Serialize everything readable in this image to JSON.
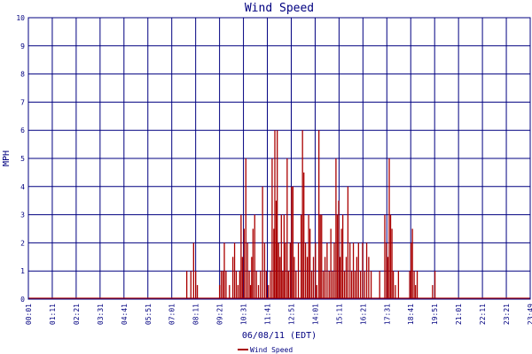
{
  "chart_data": {
    "type": "line",
    "title": "Wind Speed",
    "xlabel": "06/08/11 (EDT)",
    "ylabel": "MPH",
    "ylim": [
      0,
      10
    ],
    "y_ticks": [
      "0",
      "1",
      "2",
      "3",
      "4",
      "5",
      "6",
      "7",
      "8",
      "9",
      "10"
    ],
    "x_ticks": [
      "00:01",
      "01:11",
      "02:21",
      "03:31",
      "04:41",
      "05:51",
      "07:01",
      "08:11",
      "09:21",
      "10:31",
      "11:41",
      "12:51",
      "14:01",
      "15:11",
      "16:21",
      "17:31",
      "18:41",
      "19:51",
      "21:01",
      "22:11",
      "23:21",
      "23:49"
    ],
    "grid": true,
    "legend_position": "bottom-center",
    "colors": {
      "series": "#aa0000",
      "grid": "#000080",
      "text": "#000080"
    },
    "series": [
      {
        "name": "Wind Speed",
        "points": [
          [
            "07:45",
            1
          ],
          [
            "07:57",
            1
          ],
          [
            "08:05",
            2
          ],
          [
            "08:11",
            1
          ],
          [
            "08:16",
            0.5
          ],
          [
            "09:21",
            0.5
          ],
          [
            "09:26",
            1
          ],
          [
            "09:31",
            1
          ],
          [
            "09:35",
            2
          ],
          [
            "09:40",
            1
          ],
          [
            "09:50",
            0.5
          ],
          [
            "10:00",
            1.5
          ],
          [
            "10:05",
            2
          ],
          [
            "10:10",
            1
          ],
          [
            "10:15",
            0.5
          ],
          [
            "10:20",
            1
          ],
          [
            "10:24",
            3
          ],
          [
            "10:28",
            1.5
          ],
          [
            "10:33",
            2.5
          ],
          [
            "10:38",
            5
          ],
          [
            "10:43",
            2
          ],
          [
            "10:48",
            1
          ],
          [
            "10:52",
            0.5
          ],
          [
            "10:55",
            1.5
          ],
          [
            "10:59",
            2.5
          ],
          [
            "11:04",
            3
          ],
          [
            "11:09",
            1
          ],
          [
            "11:15",
            0.5
          ],
          [
            "11:21",
            1
          ],
          [
            "11:27",
            4
          ],
          [
            "11:33",
            2
          ],
          [
            "11:38",
            1
          ],
          [
            "11:44",
            0.5
          ],
          [
            "11:50",
            1
          ],
          [
            "11:55",
            5
          ],
          [
            "12:00",
            2.5
          ],
          [
            "12:03",
            6
          ],
          [
            "12:07",
            3.5
          ],
          [
            "12:10",
            6
          ],
          [
            "12:14",
            2
          ],
          [
            "12:18",
            1.5
          ],
          [
            "12:22",
            3
          ],
          [
            "12:26",
            1
          ],
          [
            "12:30",
            3
          ],
          [
            "12:34",
            2
          ],
          [
            "12:39",
            5
          ],
          [
            "12:43",
            1
          ],
          [
            "12:48",
            2
          ],
          [
            "12:52",
            4
          ],
          [
            "12:56",
            4
          ],
          [
            "13:00",
            1.5
          ],
          [
            "13:05",
            1
          ],
          [
            "13:12",
            2
          ],
          [
            "13:20",
            3
          ],
          [
            "13:24",
            6
          ],
          [
            "13:28",
            4.5
          ],
          [
            "13:33",
            2
          ],
          [
            "13:38",
            1.5
          ],
          [
            "13:42",
            3
          ],
          [
            "13:46",
            2.5
          ],
          [
            "13:51",
            1
          ],
          [
            "13:56",
            1.5
          ],
          [
            "14:02",
            2
          ],
          [
            "14:06",
            0.5
          ],
          [
            "14:12",
            6
          ],
          [
            "14:16",
            3
          ],
          [
            "14:20",
            3
          ],
          [
            "14:25",
            1
          ],
          [
            "14:30",
            1.5
          ],
          [
            "14:36",
            2
          ],
          [
            "14:42",
            1
          ],
          [
            "14:47",
            2.5
          ],
          [
            "14:52",
            1
          ],
          [
            "14:57",
            2
          ],
          [
            "15:02",
            5
          ],
          [
            "15:06",
            3
          ],
          [
            "15:10",
            3.5
          ],
          [
            "15:14",
            1.5
          ],
          [
            "15:18",
            2.5
          ],
          [
            "15:22",
            3
          ],
          [
            "15:27",
            1
          ],
          [
            "15:32",
            1.5
          ],
          [
            "15:37",
            4
          ],
          [
            "15:43",
            2
          ],
          [
            "15:48",
            1
          ],
          [
            "15:53",
            2
          ],
          [
            "15:58",
            1
          ],
          [
            "16:03",
            1.5
          ],
          [
            "16:08",
            2
          ],
          [
            "16:14",
            1
          ],
          [
            "16:20",
            2
          ],
          [
            "16:26",
            1
          ],
          [
            "16:32",
            2
          ],
          [
            "16:38",
            1.5
          ],
          [
            "16:45",
            1
          ],
          [
            "17:10",
            1
          ],
          [
            "17:25",
            3
          ],
          [
            "17:30",
            2
          ],
          [
            "17:34",
            1.5
          ],
          [
            "17:38",
            5
          ],
          [
            "17:42",
            3
          ],
          [
            "17:46",
            2.5
          ],
          [
            "17:50",
            1
          ],
          [
            "17:56",
            0.5
          ],
          [
            "18:05",
            1
          ],
          [
            "18:38",
            1
          ],
          [
            "18:42",
            2
          ],
          [
            "18:46",
            2.5
          ],
          [
            "18:51",
            1
          ],
          [
            "18:55",
            0.5
          ],
          [
            "19:00",
            1
          ],
          [
            "19:45",
            0.5
          ],
          [
            "19:52",
            1
          ]
        ]
      }
    ]
  }
}
